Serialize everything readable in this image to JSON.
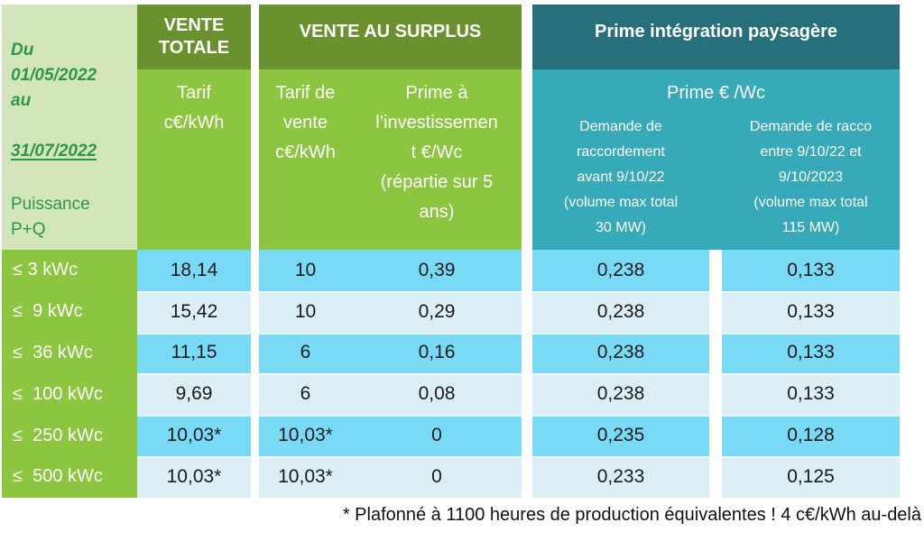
{
  "colors": {
    "header_green_dark": "#69922e",
    "header_green_mid": "#8cc540",
    "corner_green_pale": "#d3e5ba",
    "teal_dark": "#266f7b",
    "teal_mid": "#36aab8",
    "row_blue_bright": "#79daf6",
    "row_blue_pale": "#dbeef5",
    "corner_text_green": "#2e9746"
  },
  "corner": {
    "period_prefix": "Du\n01/05/2022\nau",
    "period_underlined": "31/07/2022",
    "power_label": "Puissance\nP+Q"
  },
  "headers": {
    "vente_totale": "VENTE\nTOTALE",
    "vente_surplus": "VENTE AU SURPLUS",
    "prime_integration": "Prime intégration paysagère"
  },
  "subheaders": {
    "tarif_totale": "Tarif\nc€/kWh",
    "tarif_vente": "Tarif de\nvente\nc€/kWh",
    "prime_investissement": "Prime à\nl’investissemen\nt €/Wc\n(répartie sur 5\nans)",
    "prime_euro_wc": "Prime € /Wc",
    "demande_avant": "Demande de\nraccordement\navant 9/10/22\n(volume max total\n30 MW)",
    "demande_entre": "Demande de racco\nentre 9/10/22 et\n9/10/2023\n(volume max total\n115 MW)"
  },
  "rows": [
    {
      "label": "≤ 3 kWc",
      "tarif_totale": "18,14",
      "tarif_vente": "10",
      "prime_invest": "0,39",
      "prime_avant": "0,238",
      "prime_entre": "0,133"
    },
    {
      "label": "≤  9 kWc",
      "tarif_totale": "15,42",
      "tarif_vente": "10",
      "prime_invest": "0,29",
      "prime_avant": "0,238",
      "prime_entre": "0,133"
    },
    {
      "label": "≤  36 kWc",
      "tarif_totale": "11,15",
      "tarif_vente": "6",
      "prime_invest": "0,16",
      "prime_avant": "0,238",
      "prime_entre": "0,133"
    },
    {
      "label": "≤  100 kWc",
      "tarif_totale": "9,69",
      "tarif_vente": "6",
      "prime_invest": "0,08",
      "prime_avant": "0,238",
      "prime_entre": "0,133"
    },
    {
      "label": "≤  250 kWc",
      "tarif_totale": "10,03*",
      "tarif_vente": "10,03*",
      "prime_invest": "0",
      "prime_avant": "0,235",
      "prime_entre": "0,128"
    },
    {
      "label": "≤  500 kWc",
      "tarif_totale": "10,03*",
      "tarif_vente": "10,03*",
      "prime_invest": "0",
      "prime_avant": "0,233",
      "prime_entre": "0,125"
    }
  ],
  "footnote": "* Plafonné à 1100 heures de production équivalentes ! 4 c€/kWh au-delà"
}
